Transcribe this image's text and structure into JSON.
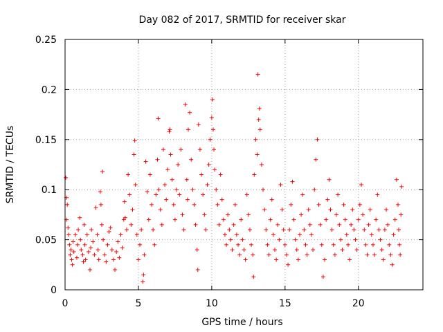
{
  "chart_data": {
    "type": "scatter",
    "title": "Day 082 of 2017, SRMTID for receiver skar",
    "xlabel": "GPS time / hours",
    "ylabel": "SRMTID / TECUs",
    "xlim": [
      0,
      24.4
    ],
    "ylim": [
      0,
      0.25
    ],
    "xticks": [
      0,
      5,
      10,
      15,
      20
    ],
    "xtick_labels": [
      "0",
      "5",
      "10",
      "15",
      "20"
    ],
    "yticks": [
      0,
      0.05,
      0.1,
      0.15,
      0.2,
      0.25
    ],
    "ytick_labels": [
      "0",
      "0.05",
      "0.1",
      "0.15",
      "0.2",
      "0.25"
    ],
    "grid": true,
    "marker": "+",
    "color": "#ff0000",
    "series": [
      {
        "name": "SRMTID",
        "points": [
          [
            0.05,
            0.112
          ],
          [
            0.1,
            0.092
          ],
          [
            0.15,
            0.085
          ],
          [
            0.1,
            0.07
          ],
          [
            0.2,
            0.062
          ],
          [
            0.25,
            0.055
          ],
          [
            0.3,
            0.045
          ],
          [
            0.35,
            0.035
          ],
          [
            0.4,
            0.04
          ],
          [
            0.45,
            0.03
          ],
          [
            0.5,
            0.025
          ],
          [
            0.55,
            0.048
          ],
          [
            0.6,
            0.038
          ],
          [
            0.7,
            0.055
          ],
          [
            0.8,
            0.032
          ],
          [
            0.85,
            0.045
          ],
          [
            0.9,
            0.06
          ],
          [
            1.0,
            0.072
          ],
          [
            1.05,
            0.05
          ],
          [
            1.1,
            0.04
          ],
          [
            1.2,
            0.035
          ],
          [
            1.25,
            0.028
          ],
          [
            1.3,
            0.065
          ],
          [
            1.35,
            0.045
          ],
          [
            1.4,
            0.03
          ],
          [
            1.5,
            0.055
          ],
          [
            1.6,
            0.038
          ],
          [
            1.7,
            0.02
          ],
          [
            1.75,
            0.042
          ],
          [
            1.8,
            0.06
          ],
          [
            1.9,
            0.048
          ],
          [
            2.0,
            0.035
          ],
          [
            2.1,
            0.082
          ],
          [
            2.2,
            0.055
          ],
          [
            2.25,
            0.04
          ],
          [
            2.3,
            0.03
          ],
          [
            2.4,
            0.098
          ],
          [
            2.45,
            0.085
          ],
          [
            2.5,
            0.065
          ],
          [
            2.55,
            0.118
          ],
          [
            2.6,
            0.05
          ],
          [
            2.7,
            0.035
          ],
          [
            2.8,
            0.028
          ],
          [
            2.9,
            0.045
          ],
          [
            3.0,
            0.058
          ],
          [
            3.1,
            0.062
          ],
          [
            3.2,
            0.04
          ],
          [
            3.3,
            0.03
          ],
          [
            3.4,
            0.02
          ],
          [
            3.5,
            0.038
          ],
          [
            3.6,
            0.048
          ],
          [
            3.7,
            0.032
          ],
          [
            3.8,
            0.055
          ],
          [
            3.9,
            0.042
          ],
          [
            4.0,
            0.07
          ],
          [
            4.05,
            0.088
          ],
          [
            4.1,
            0.072
          ],
          [
            4.2,
            0.06
          ],
          [
            4.3,
            0.115
          ],
          [
            4.4,
            0.095
          ],
          [
            4.5,
            0.065
          ],
          [
            4.6,
            0.08
          ],
          [
            4.7,
            0.135
          ],
          [
            4.75,
            0.149
          ],
          [
            4.8,
            0.105
          ],
          [
            4.9,
            0.055
          ],
          [
            5.0,
            0.03
          ],
          [
            5.1,
            0.045
          ],
          [
            5.2,
            0.06
          ],
          [
            5.3,
            0.008
          ],
          [
            5.35,
            0.015
          ],
          [
            5.4,
            0.035
          ],
          [
            5.5,
            0.128
          ],
          [
            5.6,
            0.098
          ],
          [
            5.7,
            0.07
          ],
          [
            5.8,
            0.115
          ],
          [
            5.9,
            0.085
          ],
          [
            6.0,
            0.06
          ],
          [
            6.1,
            0.045
          ],
          [
            6.2,
            0.095
          ],
          [
            6.3,
            0.13
          ],
          [
            6.35,
            0.171
          ],
          [
            6.4,
            0.1
          ],
          [
            6.5,
            0.08
          ],
          [
            6.6,
            0.065
          ],
          [
            6.7,
            0.14
          ],
          [
            6.8,
            0.105
          ],
          [
            6.9,
            0.09
          ],
          [
            7.0,
            0.12
          ],
          [
            7.1,
            0.158
          ],
          [
            7.15,
            0.16
          ],
          [
            7.2,
            0.135
          ],
          [
            7.3,
            0.11
          ],
          [
            7.4,
            0.085
          ],
          [
            7.5,
            0.07
          ],
          [
            7.6,
            0.1
          ],
          [
            7.7,
            0.125
          ],
          [
            7.8,
            0.095
          ],
          [
            7.9,
            0.14
          ],
          [
            8.0,
            0.075
          ],
          [
            8.1,
            0.06
          ],
          [
            8.2,
            0.185
          ],
          [
            8.3,
            0.11
          ],
          [
            8.35,
            0.09
          ],
          [
            8.4,
            0.16
          ],
          [
            8.5,
            0.177
          ],
          [
            8.6,
            0.13
          ],
          [
            8.7,
            0.1
          ],
          [
            8.8,
            0.085
          ],
          [
            8.9,
            0.065
          ],
          [
            9.0,
            0.04
          ],
          [
            9.05,
            0.02
          ],
          [
            9.1,
            0.165
          ],
          [
            9.2,
            0.14
          ],
          [
            9.3,
            0.115
          ],
          [
            9.4,
            0.095
          ],
          [
            9.5,
            0.075
          ],
          [
            9.6,
            0.06
          ],
          [
            9.7,
            0.105
          ],
          [
            9.8,
            0.125
          ],
          [
            9.9,
            0.15
          ],
          [
            10.0,
            0.172
          ],
          [
            10.05,
            0.19
          ],
          [
            10.1,
            0.16
          ],
          [
            10.15,
            0.14
          ],
          [
            10.2,
            0.12
          ],
          [
            10.3,
            0.1
          ],
          [
            10.4,
            0.085
          ],
          [
            10.5,
            0.065
          ],
          [
            10.6,
            0.115
          ],
          [
            10.7,
            0.09
          ],
          [
            10.8,
            0.07
          ],
          [
            10.9,
            0.055
          ],
          [
            11.0,
            0.045
          ],
          [
            11.1,
            0.075
          ],
          [
            11.2,
            0.06
          ],
          [
            11.3,
            0.05
          ],
          [
            11.4,
            0.04
          ],
          [
            11.5,
            0.065
          ],
          [
            11.6,
            0.085
          ],
          [
            11.7,
            0.055
          ],
          [
            11.8,
            0.045
          ],
          [
            11.9,
            0.035
          ],
          [
            12.0,
            0.07
          ],
          [
            12.1,
            0.05
          ],
          [
            12.2,
            0.04
          ],
          [
            12.3,
            0.03
          ],
          [
            12.4,
            0.095
          ],
          [
            12.5,
            0.075
          ],
          [
            12.6,
            0.06
          ],
          [
            12.7,
            0.045
          ],
          [
            12.8,
            0.035
          ],
          [
            12.85,
            0.013
          ],
          [
            12.9,
            0.115
          ],
          [
            13.0,
            0.15
          ],
          [
            13.1,
            0.135
          ],
          [
            13.15,
            0.215
          ],
          [
            13.2,
            0.17
          ],
          [
            13.25,
            0.181
          ],
          [
            13.3,
            0.16
          ],
          [
            13.4,
            0.125
          ],
          [
            13.5,
            0.1
          ],
          [
            13.6,
            0.08
          ],
          [
            13.7,
            0.06
          ],
          [
            13.8,
            0.045
          ],
          [
            13.9,
            0.035
          ],
          [
            14.0,
            0.07
          ],
          [
            14.1,
            0.09
          ],
          [
            14.2,
            0.055
          ],
          [
            14.3,
            0.04
          ],
          [
            14.4,
            0.03
          ],
          [
            14.5,
            0.065
          ],
          [
            14.6,
            0.05
          ],
          [
            14.7,
            0.105
          ],
          [
            14.8,
            0.08
          ],
          [
            14.9,
            0.06
          ],
          [
            15.0,
            0.045
          ],
          [
            15.1,
            0.035
          ],
          [
            15.2,
            0.025
          ],
          [
            15.3,
            0.06
          ],
          [
            15.4,
            0.085
          ],
          [
            15.5,
            0.108
          ],
          [
            15.6,
            0.07
          ],
          [
            15.7,
            0.05
          ],
          [
            15.8,
            0.04
          ],
          [
            15.9,
            0.03
          ],
          [
            16.0,
            0.055
          ],
          [
            16.1,
            0.075
          ],
          [
            16.2,
            0.095
          ],
          [
            16.3,
            0.06
          ],
          [
            16.4,
            0.045
          ],
          [
            16.5,
            0.035
          ],
          [
            16.6,
            0.08
          ],
          [
            16.7,
            0.065
          ],
          [
            16.8,
            0.055
          ],
          [
            16.9,
            0.04
          ],
          [
            17.0,
            0.1
          ],
          [
            17.1,
            0.13
          ],
          [
            17.2,
            0.15
          ],
          [
            17.3,
            0.085
          ],
          [
            17.4,
            0.065
          ],
          [
            17.5,
            0.045
          ],
          [
            17.6,
            0.013
          ],
          [
            17.7,
            0.03
          ],
          [
            17.8,
            0.07
          ],
          [
            17.9,
            0.09
          ],
          [
            18.0,
            0.11
          ],
          [
            18.1,
            0.08
          ],
          [
            18.2,
            0.06
          ],
          [
            18.3,
            0.045
          ],
          [
            18.4,
            0.035
          ],
          [
            18.5,
            0.075
          ],
          [
            18.6,
            0.095
          ],
          [
            18.7,
            0.065
          ],
          [
            18.8,
            0.05
          ],
          [
            18.9,
            0.04
          ],
          [
            19.0,
            0.085
          ],
          [
            19.1,
            0.07
          ],
          [
            19.2,
            0.055
          ],
          [
            19.3,
            0.045
          ],
          [
            19.4,
            0.03
          ],
          [
            19.5,
            0.065
          ],
          [
            19.6,
            0.08
          ],
          [
            19.7,
            0.06
          ],
          [
            19.8,
            0.05
          ],
          [
            19.9,
            0.04
          ],
          [
            20.0,
            0.07
          ],
          [
            20.1,
            0.085
          ],
          [
            20.2,
            0.105
          ],
          [
            20.3,
            0.075
          ],
          [
            20.4,
            0.06
          ],
          [
            20.5,
            0.045
          ],
          [
            20.6,
            0.035
          ],
          [
            20.7,
            0.065
          ],
          [
            20.8,
            0.08
          ],
          [
            20.9,
            0.055
          ],
          [
            21.0,
            0.045
          ],
          [
            21.1,
            0.035
          ],
          [
            21.2,
            0.07
          ],
          [
            21.3,
            0.095
          ],
          [
            21.4,
            0.06
          ],
          [
            21.5,
            0.05
          ],
          [
            21.6,
            0.04
          ],
          [
            21.7,
            0.03
          ],
          [
            21.8,
            0.06
          ],
          [
            21.9,
            0.08
          ],
          [
            22.0,
            0.065
          ],
          [
            22.1,
            0.045
          ],
          [
            22.2,
            0.035
          ],
          [
            22.3,
            0.025
          ],
          [
            22.4,
            0.055
          ],
          [
            22.5,
            0.07
          ],
          [
            22.6,
            0.11
          ],
          [
            22.7,
            0.085
          ],
          [
            22.75,
            0.06
          ],
          [
            22.8,
            0.045
          ],
          [
            22.85,
            0.035
          ],
          [
            22.9,
            0.075
          ],
          [
            22.95,
            0.103
          ]
        ]
      }
    ]
  }
}
